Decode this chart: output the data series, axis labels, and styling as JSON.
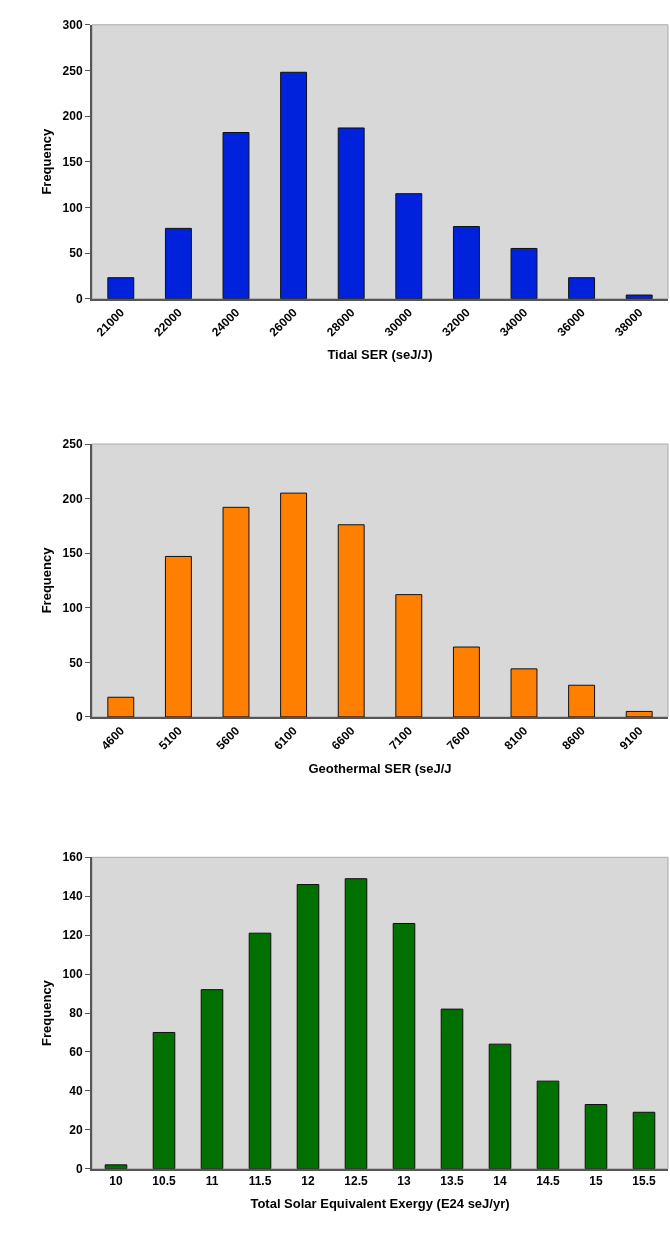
{
  "chart_data": [
    {
      "type": "bar",
      "xlabel": "Tidal SER (seJ/J)",
      "ylabel": "Frequency",
      "categories": [
        "21000",
        "22000",
        "24000",
        "26000",
        "28000",
        "30000",
        "32000",
        "34000",
        "36000",
        "38000"
      ],
      "values": [
        23,
        77,
        182,
        248,
        187,
        115,
        79,
        55,
        23,
        4
      ],
      "color": "#0022dd",
      "ylim": [
        0,
        300
      ],
      "yticks": [
        0,
        50,
        100,
        150,
        200,
        250,
        300
      ],
      "grid": false,
      "legend": false
    },
    {
      "type": "bar",
      "xlabel": "Geothermal SER (seJ/J",
      "ylabel": "Frequency",
      "categories": [
        "4600",
        "5100",
        "5600",
        "6100",
        "6600",
        "7100",
        "7600",
        "8100",
        "8600",
        "9100"
      ],
      "values": [
        18,
        147,
        192,
        205,
        176,
        112,
        64,
        44,
        29,
        5
      ],
      "color": "#ff8000",
      "ylim": [
        0,
        250
      ],
      "yticks": [
        0,
        50,
        100,
        150,
        200,
        250
      ],
      "grid": false,
      "legend": false
    },
    {
      "type": "bar",
      "xlabel": "Total Solar Equivalent Exergy (E24 seJ/yr)",
      "ylabel": "Frequency",
      "categories": [
        "10",
        "10.5",
        "11",
        "11.5",
        "12",
        "12.5",
        "13",
        "13.5",
        "14",
        "14.5",
        "15",
        "15.5"
      ],
      "values": [
        2,
        70,
        92,
        121,
        146,
        149,
        126,
        82,
        64,
        45,
        33,
        29
      ],
      "color": "#007000",
      "ylim": [
        0,
        160
      ],
      "yticks": [
        0,
        20,
        40,
        60,
        80,
        100,
        120,
        140,
        160
      ],
      "grid": false,
      "legend": false
    }
  ]
}
